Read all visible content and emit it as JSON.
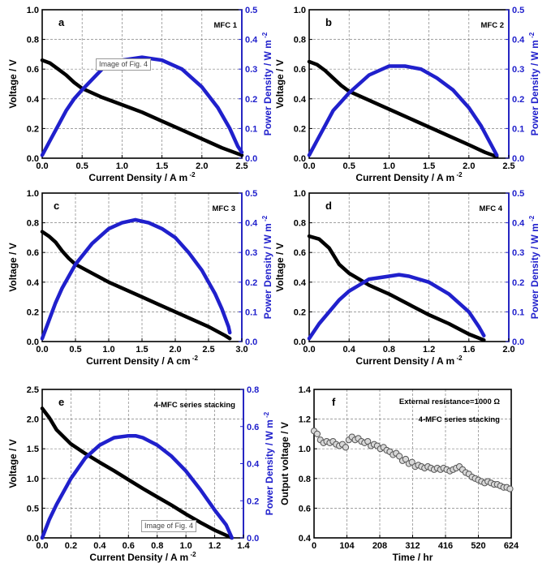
{
  "figure": {
    "badge_text": "Image of Fig. 4"
  },
  "colors": {
    "black_series": "#000000",
    "blue_series": "#2020cc",
    "grid": "#808080",
    "axis": "#000000",
    "f_marker_stroke": "#555555",
    "f_marker_fill": "#d8d8d8"
  },
  "chart_data": [
    {
      "panel_letter": "a",
      "type": "line",
      "annotation": "MFC 1",
      "xlabel": "Current Density / A m",
      "xlabel_sup": "-2",
      "ylabel": "Voltage / V",
      "y2label": "Power Density / W m",
      "y2label_sup": "-2",
      "xlim": [
        0,
        2.5
      ],
      "ylim": [
        0,
        1.0
      ],
      "y2lim": [
        0,
        0.5
      ],
      "xticks": [
        0,
        0.5,
        1.0,
        1.5,
        2.0,
        2.5
      ],
      "xtick_labels": [
        "0.0",
        "0.5",
        "1.0",
        "1.5",
        "2.0",
        "2.5"
      ],
      "yticks": [
        0,
        0.2,
        0.4,
        0.6,
        0.8,
        1.0
      ],
      "ytick_labels": [
        "0.0",
        "0.2",
        "0.4",
        "0.6",
        "0.8",
        "1.0"
      ],
      "y2ticks": [
        0,
        0.1,
        0.2,
        0.3,
        0.4,
        0.5
      ],
      "y2tick_labels": [
        "0.0",
        "0.1",
        "0.2",
        "0.3",
        "0.4",
        "0.5"
      ],
      "grid": true,
      "series": [
        {
          "axis": "left",
          "color": "black",
          "x": [
            0.0,
            0.1,
            0.2,
            0.3,
            0.4,
            0.5,
            0.75,
            1.0,
            1.25,
            1.5,
            1.75,
            2.0,
            2.25,
            2.5
          ],
          "y": [
            0.66,
            0.64,
            0.6,
            0.56,
            0.51,
            0.47,
            0.41,
            0.36,
            0.31,
            0.25,
            0.19,
            0.13,
            0.07,
            0.02
          ]
        },
        {
          "axis": "right",
          "color": "blue",
          "x": [
            0.0,
            0.1,
            0.2,
            0.3,
            0.4,
            0.5,
            0.75,
            1.0,
            1.25,
            1.5,
            1.75,
            2.0,
            2.2,
            2.35,
            2.45,
            2.5
          ],
          "y": [
            0.01,
            0.06,
            0.11,
            0.16,
            0.2,
            0.23,
            0.3,
            0.33,
            0.34,
            0.33,
            0.3,
            0.24,
            0.17,
            0.1,
            0.04,
            0.02
          ]
        }
      ]
    },
    {
      "panel_letter": "b",
      "type": "line",
      "annotation": "MFC 2",
      "xlabel": "Current Density / A m",
      "xlabel_sup": "-2",
      "ylabel": "Voltage / V",
      "y2label": "Power Density / W m",
      "y2label_sup": "-2",
      "xlim": [
        0,
        2.5
      ],
      "ylim": [
        0,
        1.0
      ],
      "y2lim": [
        0,
        0.5
      ],
      "xticks": [
        0,
        0.5,
        1.0,
        1.5,
        2.0,
        2.5
      ],
      "xtick_labels": [
        "0.0",
        "0.5",
        "1.0",
        "1.5",
        "2.0",
        "2.5"
      ],
      "yticks": [
        0,
        0.2,
        0.4,
        0.6,
        0.8,
        1.0
      ],
      "ytick_labels": [
        "0.0",
        "0.2",
        "0.4",
        "0.6",
        "0.8",
        "1.0"
      ],
      "y2ticks": [
        0,
        0.1,
        0.2,
        0.3,
        0.4,
        0.5
      ],
      "y2tick_labels": [
        "0.0",
        "0.1",
        "0.2",
        "0.3",
        "0.4",
        "0.5"
      ],
      "grid": true,
      "series": [
        {
          "axis": "left",
          "color": "black",
          "x": [
            0.0,
            0.1,
            0.2,
            0.3,
            0.4,
            0.5,
            0.75,
            1.0,
            1.25,
            1.5,
            1.75,
            2.0,
            2.2,
            2.35
          ],
          "y": [
            0.65,
            0.63,
            0.59,
            0.54,
            0.49,
            0.45,
            0.39,
            0.33,
            0.27,
            0.21,
            0.15,
            0.09,
            0.04,
            0.01
          ]
        },
        {
          "axis": "right",
          "color": "blue",
          "x": [
            0.0,
            0.1,
            0.2,
            0.3,
            0.4,
            0.5,
            0.75,
            1.0,
            1.2,
            1.4,
            1.6,
            1.8,
            2.0,
            2.15,
            2.25,
            2.35
          ],
          "y": [
            0.01,
            0.06,
            0.11,
            0.16,
            0.19,
            0.22,
            0.28,
            0.31,
            0.31,
            0.3,
            0.27,
            0.23,
            0.17,
            0.11,
            0.06,
            0.01
          ]
        }
      ]
    },
    {
      "panel_letter": "c",
      "type": "line",
      "annotation": "MFC 3",
      "xlabel": "Current Density / A cm",
      "xlabel_sup": "-2",
      "ylabel": "Voltage / V",
      "y2label": "Power Density / W m",
      "y2label_sup": "-2",
      "xlim": [
        0,
        3.0
      ],
      "ylim": [
        0,
        1.0
      ],
      "y2lim": [
        0,
        0.5
      ],
      "xticks": [
        0,
        0.5,
        1.0,
        1.5,
        2.0,
        2.5,
        3.0
      ],
      "xtick_labels": [
        "0.0",
        "0.5",
        "1.0",
        "1.5",
        "2.0",
        "2.5",
        "3.0"
      ],
      "yticks": [
        0,
        0.2,
        0.4,
        0.6,
        0.8,
        1.0
      ],
      "ytick_labels": [
        "0.0",
        "0.2",
        "0.4",
        "0.6",
        "0.8",
        "1.0"
      ],
      "y2ticks": [
        0,
        0.1,
        0.2,
        0.3,
        0.4,
        0.5
      ],
      "y2tick_labels": [
        "0.0",
        "0.1",
        "0.2",
        "0.3",
        "0.4",
        "0.5"
      ],
      "grid": true,
      "series": [
        {
          "axis": "left",
          "color": "black",
          "x": [
            0.0,
            0.1,
            0.2,
            0.3,
            0.4,
            0.5,
            0.75,
            1.0,
            1.25,
            1.5,
            1.75,
            2.0,
            2.25,
            2.5,
            2.75,
            2.82
          ],
          "y": [
            0.74,
            0.71,
            0.67,
            0.61,
            0.56,
            0.52,
            0.46,
            0.4,
            0.35,
            0.3,
            0.25,
            0.2,
            0.15,
            0.1,
            0.04,
            0.02
          ]
        },
        {
          "axis": "right",
          "color": "blue",
          "x": [
            0.0,
            0.1,
            0.2,
            0.3,
            0.4,
            0.5,
            0.75,
            1.0,
            1.2,
            1.4,
            1.6,
            1.8,
            2.0,
            2.2,
            2.4,
            2.6,
            2.7,
            2.8,
            2.82
          ],
          "y": [
            0.01,
            0.07,
            0.13,
            0.18,
            0.22,
            0.26,
            0.33,
            0.38,
            0.4,
            0.41,
            0.4,
            0.38,
            0.35,
            0.3,
            0.24,
            0.16,
            0.11,
            0.05,
            0.03
          ]
        }
      ]
    },
    {
      "panel_letter": "d",
      "type": "line",
      "annotation": "MFC 4",
      "xlabel": "Current Density / A m",
      "xlabel_sup": "-2",
      "ylabel": "Voltage / V",
      "y2label": "Power Density / W m",
      "y2label_sup": "-2",
      "xlim": [
        0,
        2.0
      ],
      "ylim": [
        0,
        1.0
      ],
      "y2lim": [
        0,
        0.5
      ],
      "xticks": [
        0,
        0.4,
        0.8,
        1.2,
        1.6,
        2.0
      ],
      "xtick_labels": [
        "0.0",
        "0.4",
        "0.8",
        "1.2",
        "1.6",
        "2.0"
      ],
      "yticks": [
        0,
        0.2,
        0.4,
        0.6,
        0.8,
        1.0
      ],
      "ytick_labels": [
        "0.0",
        "0.2",
        "0.4",
        "0.6",
        "0.8",
        "1.0"
      ],
      "y2ticks": [
        0,
        0.1,
        0.2,
        0.3,
        0.4,
        0.5
      ],
      "y2tick_labels": [
        "0.0",
        "0.1",
        "0.2",
        "0.3",
        "0.4",
        "0.5"
      ],
      "grid": true,
      "series": [
        {
          "axis": "left",
          "color": "black",
          "x": [
            0.0,
            0.1,
            0.2,
            0.3,
            0.4,
            0.5,
            0.6,
            0.8,
            1.0,
            1.2,
            1.4,
            1.6,
            1.75
          ],
          "y": [
            0.71,
            0.69,
            0.63,
            0.52,
            0.46,
            0.42,
            0.38,
            0.32,
            0.25,
            0.18,
            0.12,
            0.05,
            0.01
          ]
        },
        {
          "axis": "right",
          "color": "blue",
          "x": [
            0.0,
            0.1,
            0.2,
            0.3,
            0.4,
            0.5,
            0.6,
            0.8,
            0.9,
            1.0,
            1.2,
            1.4,
            1.6,
            1.7,
            1.75
          ],
          "y": [
            0.01,
            0.06,
            0.1,
            0.14,
            0.17,
            0.19,
            0.21,
            0.22,
            0.225,
            0.22,
            0.2,
            0.16,
            0.1,
            0.05,
            0.02
          ]
        }
      ]
    },
    {
      "panel_letter": "e",
      "type": "line",
      "annotation": "4-MFC series stacking",
      "xlabel": "Current Density / A m",
      "xlabel_sup": "-2",
      "ylabel": "Voltage / V",
      "y2label": "Power Density / W m",
      "y2label_sup": "-2",
      "xlim": [
        0,
        1.4
      ],
      "ylim": [
        0,
        2.5
      ],
      "y2lim": [
        0,
        0.8
      ],
      "xticks": [
        0,
        0.2,
        0.4,
        0.6,
        0.8,
        1.0,
        1.2,
        1.4
      ],
      "xtick_labels": [
        "0.0",
        "0.2",
        "0.4",
        "0.6",
        "0.8",
        "1.0",
        "1.2",
        "1.4"
      ],
      "yticks": [
        0,
        0.5,
        1.0,
        1.5,
        2.0,
        2.5
      ],
      "ytick_labels": [
        "0.0",
        "0.5",
        "1.0",
        "1.5",
        "2.0",
        "2.5"
      ],
      "y2ticks": [
        0,
        0.2,
        0.4,
        0.6,
        0.8
      ],
      "y2tick_labels": [
        "0.0",
        "0.2",
        "0.4",
        "0.6",
        "0.8"
      ],
      "grid": true,
      "series": [
        {
          "axis": "left",
          "color": "black",
          "x": [
            0.0,
            0.05,
            0.1,
            0.2,
            0.3,
            0.4,
            0.5,
            0.6,
            0.7,
            0.8,
            0.9,
            1.0,
            1.1,
            1.2,
            1.32
          ],
          "y": [
            2.18,
            2.02,
            1.82,
            1.58,
            1.42,
            1.27,
            1.13,
            0.98,
            0.83,
            0.69,
            0.55,
            0.4,
            0.26,
            0.13,
            0.0
          ]
        },
        {
          "axis": "right",
          "color": "blue",
          "x": [
            0.0,
            0.05,
            0.1,
            0.2,
            0.3,
            0.4,
            0.5,
            0.6,
            0.65,
            0.7,
            0.8,
            0.9,
            1.0,
            1.1,
            1.2,
            1.28,
            1.32
          ],
          "y": [
            0.0,
            0.1,
            0.18,
            0.32,
            0.43,
            0.5,
            0.54,
            0.55,
            0.55,
            0.54,
            0.5,
            0.44,
            0.36,
            0.26,
            0.15,
            0.07,
            0.0
          ]
        }
      ]
    },
    {
      "panel_letter": "f",
      "type": "scatter",
      "annotation_lines": [
        "External resistance=1000 Ω",
        "4-MFC series stacking"
      ],
      "xlabel": "Time / hr",
      "ylabel": "Output voltage / V",
      "xlim": [
        0,
        624
      ],
      "ylim": [
        0.4,
        1.4
      ],
      "xticks": [
        0,
        104,
        208,
        312,
        416,
        520,
        624
      ],
      "xtick_labels": [
        "0",
        "104",
        "208",
        "312",
        "416",
        "520",
        "624"
      ],
      "yticks": [
        0.4,
        0.6,
        0.8,
        1.0,
        1.2,
        1.4
      ],
      "ytick_labels": [
        "0.4",
        "0.6",
        "0.8",
        "1.0",
        "1.2",
        "1.4"
      ],
      "grid": true,
      "series": [
        {
          "axis": "left",
          "color": "gray-open-circles",
          "x": [
            0,
            10,
            20,
            30,
            40,
            50,
            60,
            70,
            80,
            90,
            100,
            110,
            120,
            130,
            140,
            150,
            160,
            170,
            180,
            190,
            200,
            210,
            220,
            230,
            240,
            250,
            260,
            270,
            280,
            290,
            300,
            310,
            320,
            330,
            340,
            350,
            360,
            370,
            380,
            390,
            400,
            410,
            420,
            430,
            440,
            450,
            460,
            470,
            480,
            490,
            500,
            510,
            520,
            530,
            540,
            550,
            560,
            570,
            580,
            590,
            600,
            610,
            620
          ],
          "y": [
            1.12,
            1.1,
            1.06,
            1.04,
            1.05,
            1.04,
            1.05,
            1.03,
            1.02,
            1.03,
            1.01,
            1.06,
            1.08,
            1.06,
            1.07,
            1.05,
            1.04,
            1.05,
            1.02,
            1.03,
            1.02,
            1.0,
            1.01,
            0.99,
            0.98,
            0.96,
            0.97,
            0.95,
            0.92,
            0.93,
            0.9,
            0.91,
            0.88,
            0.89,
            0.88,
            0.87,
            0.88,
            0.87,
            0.86,
            0.87,
            0.86,
            0.87,
            0.86,
            0.85,
            0.86,
            0.87,
            0.88,
            0.86,
            0.84,
            0.83,
            0.81,
            0.8,
            0.79,
            0.78,
            0.77,
            0.78,
            0.77,
            0.76,
            0.76,
            0.75,
            0.74,
            0.74,
            0.73
          ]
        }
      ]
    }
  ]
}
